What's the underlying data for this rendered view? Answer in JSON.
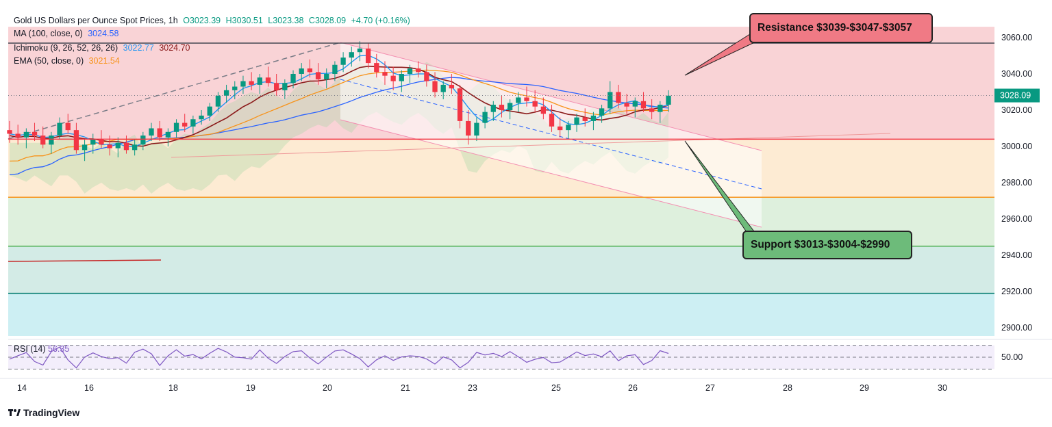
{
  "header": {
    "symbol_title": "Gold US Dollars per Ounce Spot Prices, 1h",
    "open": "O3023.39",
    "high": "H3030.51",
    "low": "L3023.38",
    "close": "C3028.09",
    "change": "+4.70 (+0.16%)"
  },
  "indicators": {
    "ma": {
      "label": "MA (100, close, 0)",
      "value": "3024.58"
    },
    "ichimoku": {
      "label": "Ichimoku (9, 26, 52, 26, 26)",
      "value1": "3022.77",
      "value2": "3024.70"
    },
    "ema": {
      "label": "EMA (50, close, 0)",
      "value": "3021.54"
    },
    "rsi": {
      "label": "RSI (14)",
      "value": "56.35",
      "level_label": "50.00"
    }
  },
  "annotations": {
    "resistance": "Resistance $3039-$3047-$3057",
    "support": "Support $3013-$3004-$2990"
  },
  "price_tag": "3028.09",
  "branding": "TradingView",
  "colors": {
    "up": "#089981",
    "down": "#f23645",
    "ma_line": "#2962ff",
    "ema_line": "#f7931a",
    "kijun_line": "#8b1a1a",
    "tenkan_line": "#2196f3",
    "rsi_line": "#7e57c2",
    "resistance_zone": "#f9d3d6",
    "zone_orange": "#fdebd3",
    "zone_green": "#def0dd",
    "zone_teal": "#d3ebe6",
    "zone_cyan": "#cdeff3"
  },
  "chart_data": {
    "type": "candlestick",
    "timeframe": "1h",
    "y_axis": {
      "ticks": [
        3060,
        3040,
        3020,
        3000,
        2980,
        2960,
        2940,
        2920,
        2900
      ],
      "ylim": [
        2895,
        3066
      ],
      "tick_labels": [
        "3060.00",
        "3040.00",
        "3020.00",
        "3000.00",
        "2980.00",
        "2960.00",
        "2940.00",
        "2920.00",
        "2900.00"
      ]
    },
    "x_axis": {
      "tick_labels": [
        "14",
        "16",
        "18",
        "19",
        "20",
        "21",
        "23",
        "25",
        "26",
        "27",
        "28",
        "29",
        "30"
      ]
    },
    "horizontal_levels": [
      {
        "name": "resistance-top",
        "value": 3057,
        "color": "#434651"
      },
      {
        "name": "red-level",
        "value": 3004,
        "color": "#f23645"
      },
      {
        "name": "orange-level",
        "value": 2972,
        "color": "#f7931a"
      },
      {
        "name": "green-level",
        "value": 2945,
        "color": "#4caf50"
      },
      {
        "name": "teal-level",
        "value": 2919,
        "color": "#00796b"
      }
    ],
    "ohlc_approx": [
      [
        3009,
        3014,
        3002,
        3007
      ],
      [
        3007,
        3012,
        3001,
        3005
      ],
      [
        3005,
        3010,
        2999,
        3008
      ],
      [
        3008,
        3013,
        3003,
        3006
      ],
      [
        3006,
        3011,
        2999,
        3001
      ],
      [
        3001,
        3008,
        2996,
        3006
      ],
      [
        3006,
        3016,
        3004,
        3013
      ],
      [
        3013,
        3018,
        3007,
        3009
      ],
      [
        3009,
        3013,
        2996,
        2998
      ],
      [
        2998,
        3004,
        2992,
        3001
      ],
      [
        3001,
        3007,
        2996,
        3004
      ],
      [
        3004,
        3009,
        2999,
        3001
      ],
      [
        3001,
        3006,
        2995,
        2999
      ],
      [
        2999,
        3005,
        2994,
        3002
      ],
      [
        3002,
        3006,
        2996,
        2998
      ],
      [
        2998,
        3004,
        2995,
        3001
      ],
      [
        3001,
        3008,
        2998,
        3006
      ],
      [
        3006,
        3013,
        3003,
        3010
      ],
      [
        3010,
        3014,
        3003,
        3005
      ],
      [
        3005,
        3010,
        3000,
        3008
      ],
      [
        3008,
        3015,
        3005,
        3013
      ],
      [
        3013,
        3018,
        3008,
        3011
      ],
      [
        3011,
        3017,
        3007,
        3015
      ],
      [
        3015,
        3020,
        3012,
        3017
      ],
      [
        3017,
        3024,
        3014,
        3022
      ],
      [
        3022,
        3030,
        3019,
        3028
      ],
      [
        3028,
        3034,
        3024,
        3031
      ],
      [
        3031,
        3036,
        3026,
        3033
      ],
      [
        3033,
        3039,
        3029,
        3036
      ],
      [
        3036,
        3041,
        3031,
        3034
      ],
      [
        3034,
        3040,
        3029,
        3038
      ],
      [
        3038,
        3044,
        3033,
        3035
      ],
      [
        3035,
        3040,
        3028,
        3031
      ],
      [
        3031,
        3037,
        3026,
        3035
      ],
      [
        3035,
        3042,
        3032,
        3040
      ],
      [
        3040,
        3046,
        3036,
        3043
      ],
      [
        3043,
        3048,
        3038,
        3041
      ],
      [
        3041,
        3046,
        3034,
        3037
      ],
      [
        3037,
        3043,
        3032,
        3040
      ],
      [
        3040,
        3047,
        3036,
        3045
      ],
      [
        3045,
        3052,
        3041,
        3049
      ],
      [
        3049,
        3055,
        3044,
        3052
      ],
      [
        3052,
        3058,
        3047,
        3054
      ],
      [
        3054,
        3057,
        3043,
        3046
      ],
      [
        3046,
        3051,
        3038,
        3041
      ],
      [
        3041,
        3047,
        3034,
        3039
      ],
      [
        3039,
        3044,
        3031,
        3036
      ],
      [
        3036,
        3042,
        3030,
        3040
      ],
      [
        3040,
        3045,
        3035,
        3043
      ],
      [
        3043,
        3047,
        3038,
        3041
      ],
      [
        3041,
        3045,
        3033,
        3036
      ],
      [
        3036,
        3041,
        3027,
        3030
      ],
      [
        3030,
        3036,
        3026,
        3034
      ],
      [
        3034,
        3040,
        3029,
        3032
      ],
      [
        3032,
        3034,
        3010,
        3014
      ],
      [
        3014,
        3020,
        3001,
        3006
      ],
      [
        3006,
        3016,
        3003,
        3013
      ],
      [
        3013,
        3022,
        3010,
        3019
      ],
      [
        3019,
        3025,
        3014,
        3023
      ],
      [
        3023,
        3028,
        3016,
        3020
      ],
      [
        3020,
        3026,
        3015,
        3024
      ],
      [
        3024,
        3030,
        3019,
        3027
      ],
      [
        3027,
        3033,
        3022,
        3025
      ],
      [
        3025,
        3031,
        3019,
        3022
      ],
      [
        3022,
        3027,
        3015,
        3018
      ],
      [
        3018,
        3023,
        3008,
        3011
      ],
      [
        3011,
        3016,
        3005,
        3009
      ],
      [
        3009,
        3014,
        3004,
        3012
      ],
      [
        3012,
        3018,
        3008,
        3016
      ],
      [
        3016,
        3021,
        3011,
        3014
      ],
      [
        3014,
        3019,
        3009,
        3017
      ],
      [
        3017,
        3023,
        3013,
        3021
      ],
      [
        3021,
        3036,
        3018,
        3030
      ],
      [
        3030,
        3034,
        3021,
        3024
      ],
      [
        3024,
        3029,
        3018,
        3022
      ],
      [
        3022,
        3027,
        3016,
        3025
      ],
      [
        3025,
        3030,
        3019,
        3021
      ],
      [
        3021,
        3026,
        3015,
        3019
      ],
      [
        3019,
        3025,
        3013,
        3023
      ],
      [
        3023,
        3031,
        3019,
        3028
      ]
    ],
    "moving_averages": [
      {
        "name": "MA (100, close, 0)",
        "color": "#2962ff",
        "value": 3024.58
      },
      {
        "name": "EMA (50, close, 0)",
        "color": "#f7931a",
        "value": 3021.54
      }
    ],
    "rsi": {
      "period": 14,
      "value": 56.35,
      "levels": [
        70,
        50,
        30
      ]
    }
  }
}
